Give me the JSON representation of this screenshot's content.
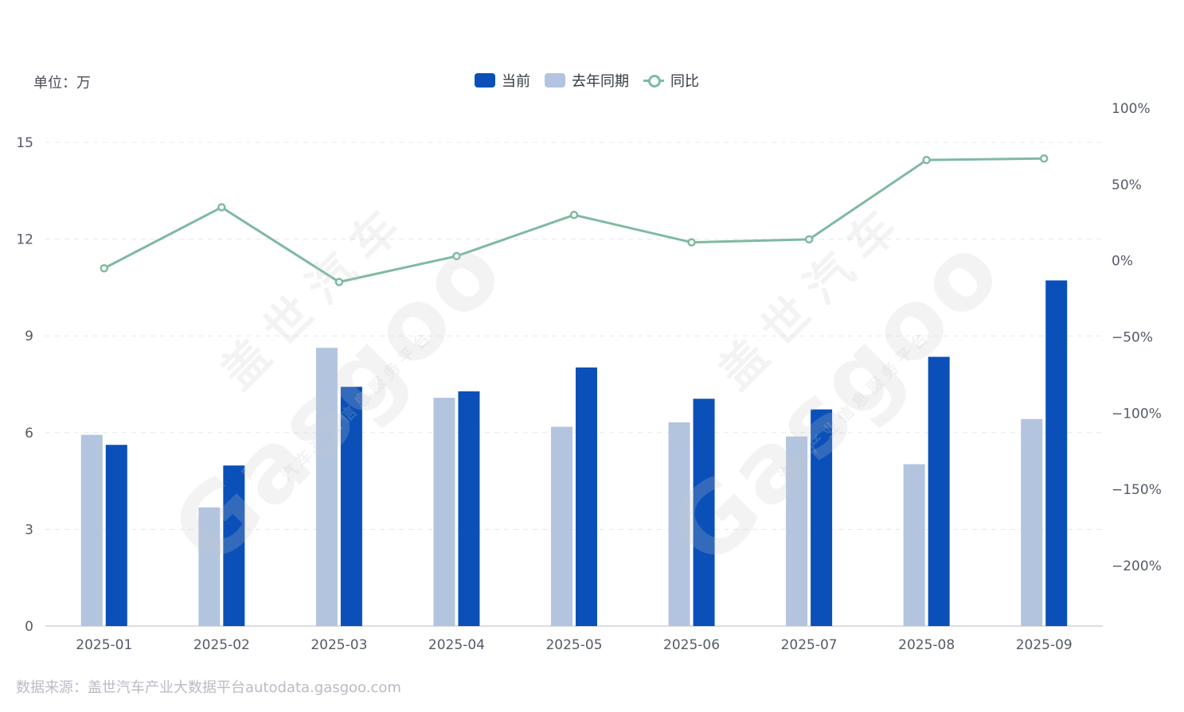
{
  "unit_label": "单位：万",
  "source": "数据来源：盖世汽车产业大数据平台autodata.gasgoo.com",
  "watermark": {
    "brand": "Gasgoo",
    "cn": "盖世汽车",
    "tagline": "汽车产业信息服务平台"
  },
  "colors": {
    "current": "#0a50b8",
    "last_year": "#b3c4df",
    "yoy": "#7fbaa0",
    "grid": "#e6e8ec",
    "axis_text": "#555b66"
  },
  "legend": {
    "current": "当前",
    "last_year": "去年同期",
    "yoy": "同比"
  },
  "chart_data": {
    "type": "bar",
    "categories": [
      "2025-01",
      "2025-02",
      "2025-03",
      "2025-04",
      "2025-05",
      "2025-06",
      "2025-07",
      "2025-08",
      "2025-09"
    ],
    "series": [
      {
        "name": "当前",
        "type": "bar",
        "axis": "left",
        "values": [
          5.62,
          4.98,
          7.42,
          7.28,
          8.02,
          7.05,
          6.72,
          8.35,
          10.72
        ]
      },
      {
        "name": "去年同期",
        "type": "bar",
        "axis": "left",
        "values": [
          5.93,
          3.68,
          8.63,
          7.08,
          6.18,
          6.32,
          5.88,
          5.02,
          6.42
        ]
      },
      {
        "name": "同比",
        "type": "line",
        "axis": "right",
        "unit": "%",
        "values": [
          -5,
          35,
          -14,
          3,
          30,
          12,
          14,
          66,
          67
        ]
      }
    ],
    "y_left": {
      "ylim": [
        0,
        15
      ],
      "ticks": [
        0,
        3,
        6,
        9,
        12,
        15
      ]
    },
    "y_right": {
      "ylim": [
        -250,
        100
      ],
      "ticks": [
        100,
        50,
        0,
        -50,
        -100,
        -150,
        -200
      ],
      "tick_labels": [
        "100%",
        "50%",
        "0%",
        "−50%",
        "−100%",
        "−150%",
        "−200%"
      ]
    },
    "grid": true,
    "legend_position": "top-center"
  }
}
